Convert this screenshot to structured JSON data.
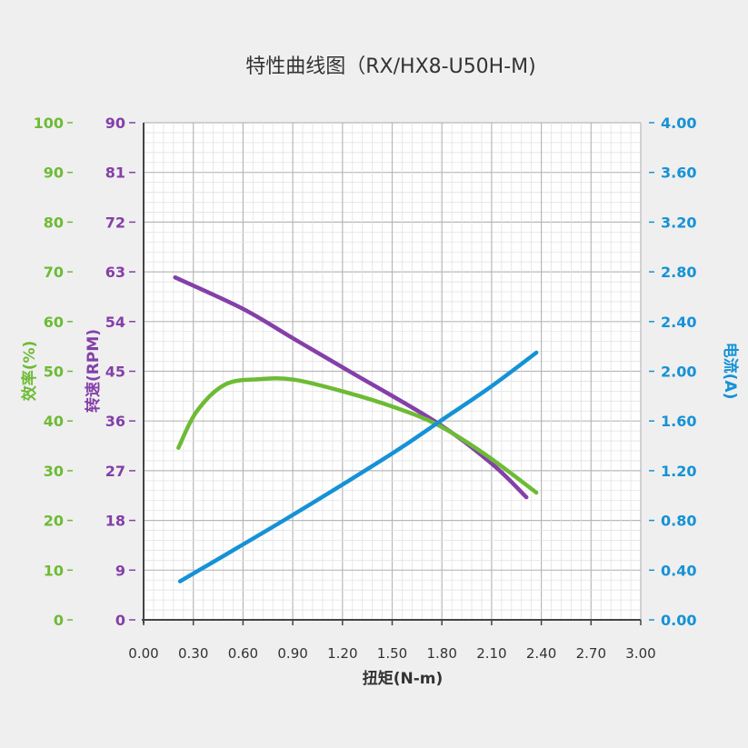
{
  "chart_data": {
    "type": "line",
    "title": "特性曲线图（RX/HX8-U50H-M)",
    "xlabel": "扭矩(N-m)",
    "xlim": [
      0,
      3.0
    ],
    "xticks": [
      "0.00",
      "0.30",
      "0.60",
      "0.90",
      "1.20",
      "1.50",
      "1.80",
      "2.10",
      "2.40",
      "2.70",
      "3.00"
    ],
    "grid": true,
    "axes": {
      "efficiency": {
        "label": "效率(%)",
        "ylim": [
          0,
          100
        ],
        "ticks": [
          "0",
          "10",
          "20",
          "30",
          "40",
          "50",
          "60",
          "70",
          "80",
          "90",
          "100"
        ],
        "color": "#6dbb35",
        "position": "left-outer"
      },
      "speed": {
        "label": "转速(RPM)",
        "ylim": [
          0,
          90
        ],
        "ticks": [
          "0",
          "9",
          "18",
          "27",
          "36",
          "45",
          "54",
          "63",
          "72",
          "81",
          "90"
        ],
        "color": "#8440a8",
        "position": "left-inner"
      },
      "current": {
        "label": "电流(A)",
        "ylim": [
          0,
          4
        ],
        "ticks": [
          "0.00",
          "0.40",
          "0.80",
          "1.20",
          "1.60",
          "2.00",
          "2.40",
          "2.80",
          "3.20",
          "3.60",
          "4.00"
        ],
        "color": "#1592d6",
        "position": "right"
      }
    },
    "series": [
      {
        "axis": "speed",
        "color": "#8440a8",
        "x": [
          0.19,
          0.6,
          0.9,
          1.23,
          1.77,
          2.1,
          2.31
        ],
        "y": [
          62.0,
          56.3,
          51.0,
          45.2,
          35.7,
          28.3,
          22.2
        ]
      },
      {
        "axis": "efficiency",
        "color": "#6dbb35",
        "x": [
          0.21,
          0.32,
          0.49,
          0.69,
          0.91,
          1.23,
          1.51,
          1.77,
          2.06,
          2.37
        ],
        "y": [
          34.6,
          41.9,
          47.3,
          48.4,
          48.3,
          45.7,
          42.8,
          39.3,
          33.3,
          25.6
        ]
      },
      {
        "axis": "current",
        "color": "#1592d6",
        "x": [
          0.22,
          0.87,
          1.49,
          1.78,
          2.1,
          2.37
        ],
        "y": [
          0.31,
          0.82,
          1.33,
          1.59,
          1.88,
          2.15
        ]
      }
    ]
  }
}
